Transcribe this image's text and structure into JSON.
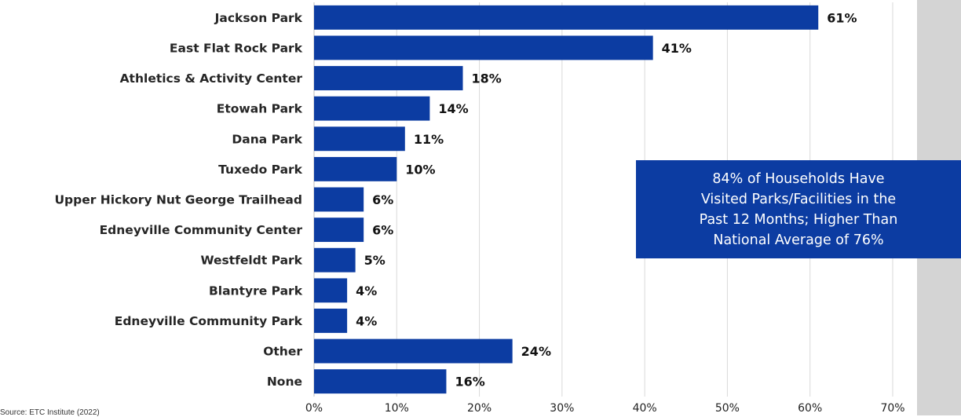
{
  "chart_data": {
    "type": "bar",
    "orientation": "horizontal",
    "categories": [
      "Jackson Park",
      "East Flat Rock Park",
      "Athletics & Activity Center",
      "Etowah Park",
      "Dana Park",
      "Tuxedo Park",
      "Upper Hickory Nut George Trailhead",
      "Edneyville Community Center",
      "Westfeldt Park",
      "Blantyre Park",
      "Edneyville Community Park",
      "Other",
      "None"
    ],
    "values": [
      61,
      41,
      18,
      14,
      11,
      10,
      6,
      6,
      5,
      4,
      4,
      24,
      16
    ],
    "value_labels": [
      "61%",
      "41%",
      "18%",
      "14%",
      "11%",
      "10%",
      "6%",
      "6%",
      "5%",
      "4%",
      "4%",
      "24%",
      "16%"
    ],
    "xlim": [
      0,
      70
    ],
    "x_ticks": [
      0,
      10,
      20,
      30,
      40,
      50,
      60,
      70
    ],
    "x_tick_labels": [
      "0%",
      "10%",
      "20%",
      "30%",
      "40%",
      "50%",
      "60%",
      "70%"
    ],
    "grid": "vertical",
    "bar_color": "#0c3ca2",
    "callout_color": "#0c3ca2",
    "callout_text": "84% of Households Have\nVisited Parks/Facilities in the\nPast 12 Months;  Higher Than\nNational Average of 76%"
  },
  "source_note": "Source: ETC Institute (2022)"
}
